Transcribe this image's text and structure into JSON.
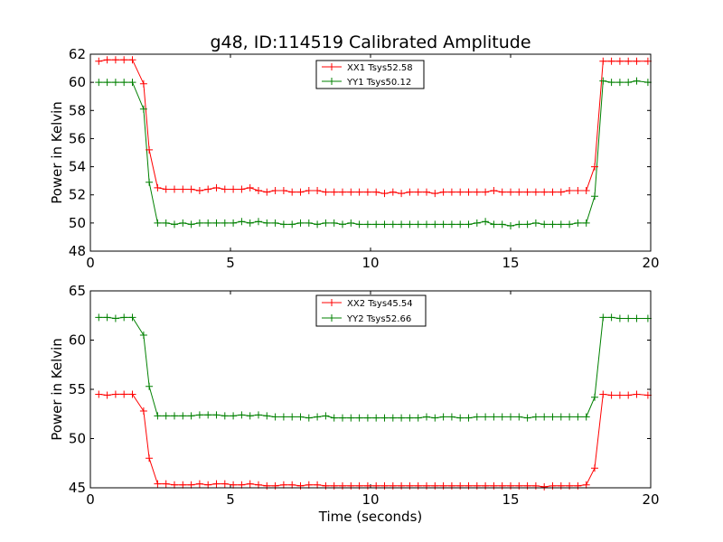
{
  "title": "g48, ID:114519 Calibrated Amplitude",
  "xlabel": "Time (seconds)",
  "chart_data": [
    {
      "type": "line",
      "ylabel": "Power in Kelvin",
      "xlim": [
        0,
        20
      ],
      "ylim": [
        48,
        62
      ],
      "xticks": [
        "0",
        "5",
        "10",
        "15",
        "20"
      ],
      "yticks": [
        "48",
        "50",
        "52",
        "54",
        "56",
        "58",
        "60",
        "62"
      ],
      "legend_position": "top-center",
      "x": [
        0.3,
        0.6,
        0.9,
        1.2,
        1.5,
        1.9,
        2.1,
        2.4,
        2.7,
        3.0,
        3.3,
        3.6,
        3.9,
        4.2,
        4.5,
        4.8,
        5.1,
        5.4,
        5.7,
        6.0,
        6.3,
        6.6,
        6.9,
        7.2,
        7.5,
        7.8,
        8.1,
        8.4,
        8.7,
        9.0,
        9.3,
        9.6,
        9.9,
        10.2,
        10.5,
        10.8,
        11.1,
        11.4,
        11.7,
        12.0,
        12.3,
        12.6,
        12.9,
        13.2,
        13.5,
        13.8,
        14.1,
        14.4,
        14.7,
        15.0,
        15.3,
        15.6,
        15.9,
        16.2,
        16.5,
        16.8,
        17.1,
        17.4,
        17.7,
        18.0,
        18.3,
        18.6,
        18.9,
        19.2,
        19.5,
        19.9
      ],
      "series": [
        {
          "name": "XX1 Tsys52.58",
          "color": "#ff0000",
          "values": [
            61.5,
            61.6,
            61.6,
            61.6,
            61.6,
            59.9,
            55.2,
            52.5,
            52.4,
            52.4,
            52.4,
            52.4,
            52.3,
            52.4,
            52.5,
            52.4,
            52.4,
            52.4,
            52.5,
            52.3,
            52.2,
            52.3,
            52.3,
            52.2,
            52.2,
            52.3,
            52.3,
            52.2,
            52.2,
            52.2,
            52.2,
            52.2,
            52.2,
            52.2,
            52.1,
            52.2,
            52.1,
            52.2,
            52.2,
            52.2,
            52.1,
            52.2,
            52.2,
            52.2,
            52.2,
            52.2,
            52.2,
            52.3,
            52.2,
            52.2,
            52.2,
            52.2,
            52.2,
            52.2,
            52.2,
            52.2,
            52.3,
            52.3,
            52.3,
            54.0,
            61.5,
            61.5,
            61.5,
            61.5,
            61.5,
            61.5
          ]
        },
        {
          "name": "YY1 Tsys50.12",
          "color": "#008000",
          "values": [
            60.0,
            60.0,
            60.0,
            60.0,
            60.0,
            58.1,
            52.9,
            50.0,
            50.0,
            49.9,
            50.0,
            49.9,
            50.0,
            50.0,
            50.0,
            50.0,
            50.0,
            50.1,
            50.0,
            50.1,
            50.0,
            50.0,
            49.9,
            49.9,
            50.0,
            50.0,
            49.9,
            50.0,
            50.0,
            49.9,
            50.0,
            49.9,
            49.9,
            49.9,
            49.9,
            49.9,
            49.9,
            49.9,
            49.9,
            49.9,
            49.9,
            49.9,
            49.9,
            49.9,
            49.9,
            50.0,
            50.1,
            49.9,
            49.9,
            49.8,
            49.9,
            49.9,
            50.0,
            49.9,
            49.9,
            49.9,
            49.9,
            50.0,
            50.0,
            51.9,
            60.1,
            60.0,
            60.0,
            60.0,
            60.1,
            60.0
          ]
        }
      ]
    },
    {
      "type": "line",
      "ylabel": "Power in Kelvin",
      "xlim": [
        0,
        20
      ],
      "ylim": [
        45,
        65
      ],
      "xticks": [
        "0",
        "5",
        "10",
        "15",
        "20"
      ],
      "yticks": [
        "45",
        "50",
        "55",
        "60",
        "65"
      ],
      "legend_position": "top-center",
      "x": [
        0.3,
        0.6,
        0.9,
        1.2,
        1.5,
        1.9,
        2.1,
        2.4,
        2.7,
        3.0,
        3.3,
        3.6,
        3.9,
        4.2,
        4.5,
        4.8,
        5.1,
        5.4,
        5.7,
        6.0,
        6.3,
        6.6,
        6.9,
        7.2,
        7.5,
        7.8,
        8.1,
        8.4,
        8.7,
        9.0,
        9.3,
        9.6,
        9.9,
        10.2,
        10.5,
        10.8,
        11.1,
        11.4,
        11.7,
        12.0,
        12.3,
        12.6,
        12.9,
        13.2,
        13.5,
        13.8,
        14.1,
        14.4,
        14.7,
        15.0,
        15.3,
        15.6,
        15.9,
        16.2,
        16.5,
        16.8,
        17.1,
        17.4,
        17.7,
        18.0,
        18.3,
        18.6,
        18.9,
        19.2,
        19.5,
        19.9
      ],
      "series": [
        {
          "name": "XX2 Tsys45.54",
          "color": "#ff0000",
          "values": [
            54.5,
            54.4,
            54.5,
            54.5,
            54.5,
            52.8,
            48.0,
            45.4,
            45.4,
            45.3,
            45.3,
            45.3,
            45.4,
            45.3,
            45.4,
            45.4,
            45.3,
            45.3,
            45.4,
            45.3,
            45.2,
            45.2,
            45.3,
            45.3,
            45.2,
            45.3,
            45.3,
            45.2,
            45.2,
            45.2,
            45.2,
            45.2,
            45.2,
            45.2,
            45.2,
            45.2,
            45.2,
            45.2,
            45.2,
            45.2,
            45.2,
            45.2,
            45.2,
            45.2,
            45.2,
            45.2,
            45.2,
            45.2,
            45.2,
            45.2,
            45.2,
            45.2,
            45.2,
            45.1,
            45.2,
            45.2,
            45.2,
            45.2,
            45.3,
            47.0,
            54.5,
            54.4,
            54.4,
            54.4,
            54.5,
            54.4
          ]
        },
        {
          "name": "YY2 Tsys52.66",
          "color": "#008000",
          "values": [
            62.3,
            62.3,
            62.2,
            62.3,
            62.3,
            60.5,
            55.3,
            52.3,
            52.3,
            52.3,
            52.3,
            52.3,
            52.4,
            52.4,
            52.4,
            52.3,
            52.3,
            52.4,
            52.3,
            52.4,
            52.3,
            52.2,
            52.2,
            52.2,
            52.2,
            52.1,
            52.2,
            52.3,
            52.1,
            52.1,
            52.1,
            52.1,
            52.1,
            52.1,
            52.1,
            52.1,
            52.1,
            52.1,
            52.1,
            52.2,
            52.1,
            52.2,
            52.2,
            52.1,
            52.1,
            52.2,
            52.2,
            52.2,
            52.2,
            52.2,
            52.2,
            52.1,
            52.2,
            52.2,
            52.2,
            52.2,
            52.2,
            52.2,
            52.2,
            54.2,
            62.3,
            62.3,
            62.2,
            62.2,
            62.2,
            62.2
          ]
        }
      ]
    }
  ]
}
